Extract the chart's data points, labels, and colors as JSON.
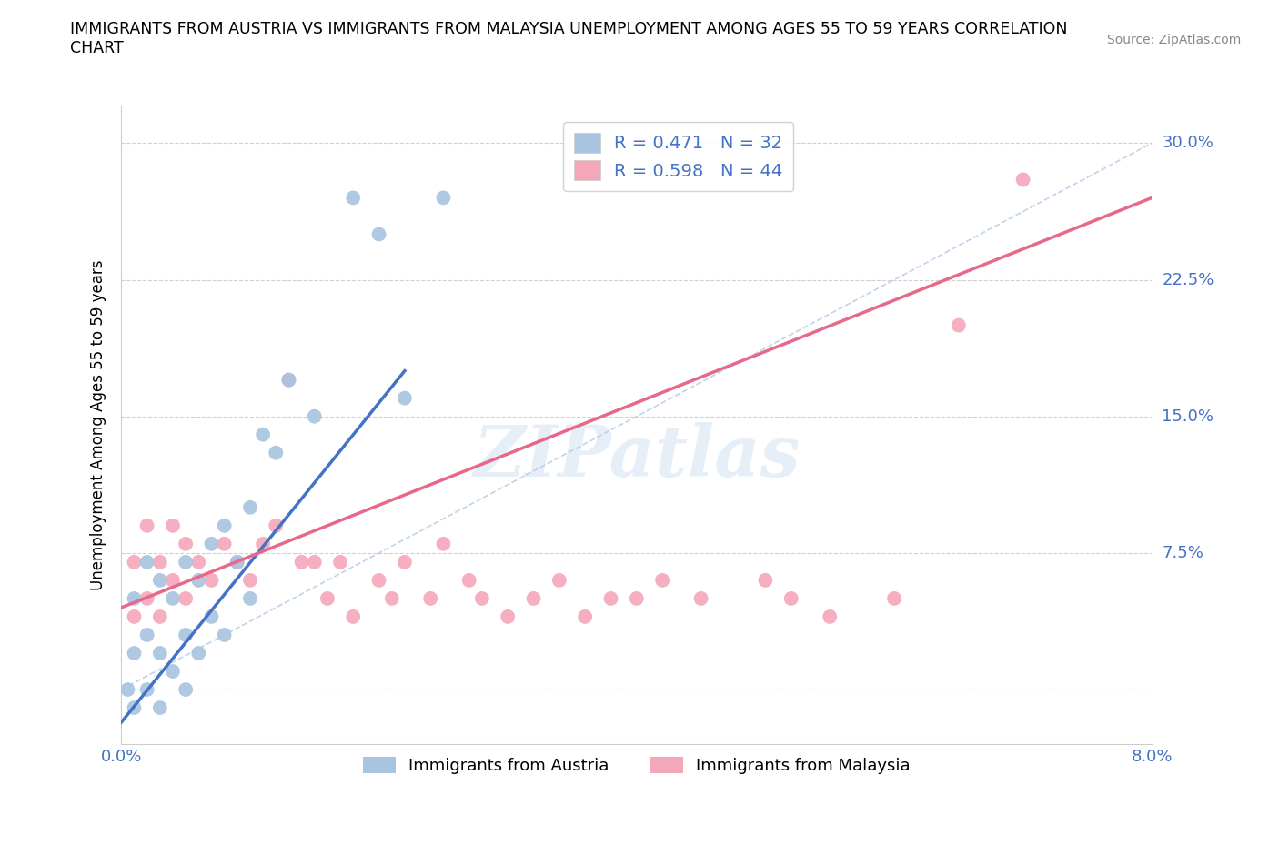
{
  "title": "IMMIGRANTS FROM AUSTRIA VS IMMIGRANTS FROM MALAYSIA UNEMPLOYMENT AMONG AGES 55 TO 59 YEARS CORRELATION\nCHART",
  "source": "Source: ZipAtlas.com",
  "ylabel": "Unemployment Among Ages 55 to 59 years",
  "austria_color": "#a8c4e0",
  "austria_line_color": "#4472c4",
  "malaysia_color": "#f4a7b9",
  "malaysia_line_color": "#e8688a",
  "diagonal_color": "#b8d0e8",
  "R_austria": 0.471,
  "N_austria": 32,
  "R_malaysia": 0.598,
  "N_malaysia": 44,
  "xlim": [
    0.0,
    0.08
  ],
  "ylim": [
    -0.03,
    0.32
  ],
  "austria_scatter_x": [
    0.0005,
    0.001,
    0.001,
    0.001,
    0.002,
    0.002,
    0.002,
    0.003,
    0.003,
    0.003,
    0.004,
    0.004,
    0.005,
    0.005,
    0.005,
    0.006,
    0.006,
    0.007,
    0.007,
    0.008,
    0.008,
    0.009,
    0.01,
    0.01,
    0.011,
    0.012,
    0.013,
    0.015,
    0.018,
    0.02,
    0.022,
    0.025
  ],
  "austria_scatter_y": [
    0.0,
    -0.01,
    0.02,
    0.05,
    0.0,
    0.03,
    0.07,
    -0.01,
    0.02,
    0.06,
    0.01,
    0.05,
    0.0,
    0.03,
    0.07,
    0.02,
    0.06,
    0.04,
    0.08,
    0.03,
    0.09,
    0.07,
    0.05,
    0.1,
    0.14,
    0.13,
    0.17,
    0.15,
    0.27,
    0.25,
    0.16,
    0.27
  ],
  "malaysia_scatter_x": [
    0.001,
    0.001,
    0.002,
    0.002,
    0.003,
    0.003,
    0.004,
    0.004,
    0.005,
    0.005,
    0.006,
    0.007,
    0.008,
    0.009,
    0.01,
    0.011,
    0.012,
    0.013,
    0.014,
    0.015,
    0.016,
    0.017,
    0.018,
    0.02,
    0.021,
    0.022,
    0.024,
    0.025,
    0.027,
    0.028,
    0.03,
    0.032,
    0.034,
    0.036,
    0.038,
    0.04,
    0.042,
    0.045,
    0.05,
    0.052,
    0.055,
    0.06,
    0.065,
    0.07
  ],
  "malaysia_scatter_y": [
    0.04,
    0.07,
    0.05,
    0.09,
    0.04,
    0.07,
    0.06,
    0.09,
    0.05,
    0.08,
    0.07,
    0.06,
    0.08,
    0.07,
    0.06,
    0.08,
    0.09,
    0.17,
    0.07,
    0.07,
    0.05,
    0.07,
    0.04,
    0.06,
    0.05,
    0.07,
    0.05,
    0.08,
    0.06,
    0.05,
    0.04,
    0.05,
    0.06,
    0.04,
    0.05,
    0.05,
    0.06,
    0.05,
    0.06,
    0.05,
    0.04,
    0.05,
    0.2,
    0.28
  ],
  "austria_line_x0": 0.0,
  "austria_line_y0": -0.018,
  "austria_line_x1": 0.022,
  "austria_line_y1": 0.175,
  "malaysia_line_x0": 0.0,
  "malaysia_line_y0": 0.045,
  "malaysia_line_x1": 0.08,
  "malaysia_line_y1": 0.27,
  "watermark": "ZIPatlas",
  "legend_label_austria": "Immigrants from Austria",
  "legend_label_malaysia": "Immigrants from Malaysia"
}
